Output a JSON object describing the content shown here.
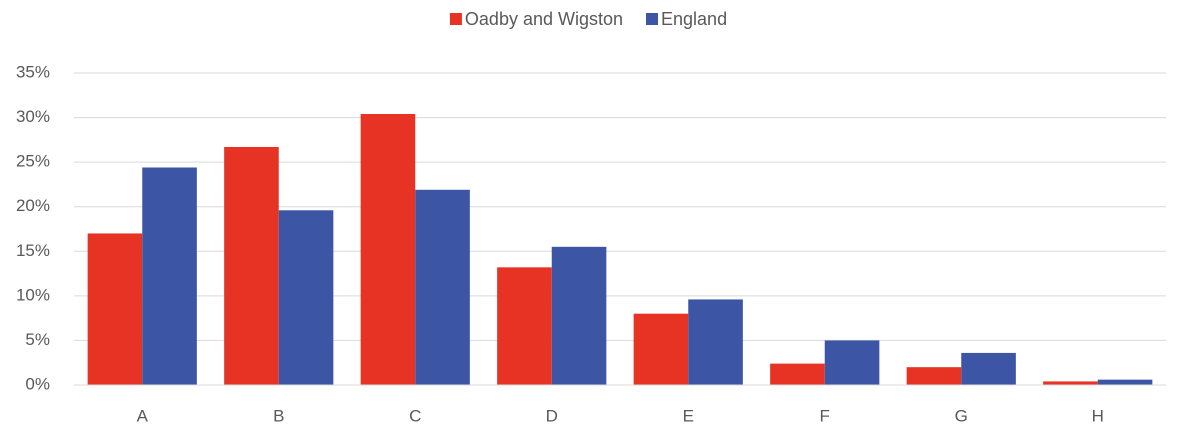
{
  "chart_data": {
    "type": "bar",
    "categories": [
      "A",
      "B",
      "C",
      "D",
      "E",
      "F",
      "G",
      "H"
    ],
    "series": [
      {
        "name": "Oadby and Wigston",
        "color": "#e63323",
        "values": [
          17.0,
          26.7,
          30.4,
          13.2,
          8.0,
          2.4,
          2.0,
          0.4
        ]
      },
      {
        "name": "England",
        "color": "#3c56a5",
        "values": [
          24.4,
          19.6,
          21.9,
          15.5,
          9.6,
          5.0,
          3.6,
          0.6
        ]
      }
    ],
    "ylim": [
      0,
      35
    ],
    "yticks": [
      {
        "value": 0,
        "label": "0%"
      },
      {
        "value": 5,
        "label": "5%"
      },
      {
        "value": 10,
        "label": "10%"
      },
      {
        "value": 15,
        "label": "15%"
      },
      {
        "value": 20,
        "label": "20%"
      },
      {
        "value": 25,
        "label": "25%"
      },
      {
        "value": 30,
        "label": "30%"
      },
      {
        "value": 35,
        "label": "35%"
      }
    ],
    "grid": true,
    "legend": "top"
  }
}
